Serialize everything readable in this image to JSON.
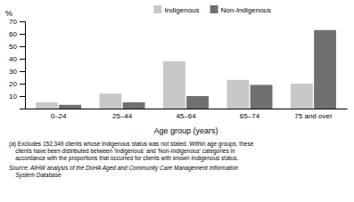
{
  "chart_data": {
    "type": "bar",
    "categories": [
      "0–24",
      "25–44",
      "45–64",
      "65–74",
      "75 and over"
    ],
    "series": [
      {
        "name": "Indigenous",
        "color": "#c8c8c8",
        "values": [
          5,
          12,
          38,
          23,
          20
        ]
      },
      {
        "name": "Non-Indigenous",
        "color": "#707070",
        "values": [
          3,
          5,
          10,
          19,
          63
        ]
      }
    ],
    "x_label": "Age group (years)",
    "y_label": "%",
    "ylim": [
      0,
      70
    ],
    "yticks": [
      10,
      20,
      30,
      40,
      50,
      60,
      70
    ],
    "grid": false,
    "legend": "top",
    "annotations": [
      "(a) Excludes 152,349 clients whose Indigenous status was not stated. Within age groups, these\n    clients have been distributed between 'Indigenous' and 'Non-Indigenous' categories in\n    accordance with the proportions that occurred for clients with known Indigenous status.",
      "Source: AIHW analysis of the DoHA Aged and Community Care Management Information\n    System Database"
    ]
  }
}
